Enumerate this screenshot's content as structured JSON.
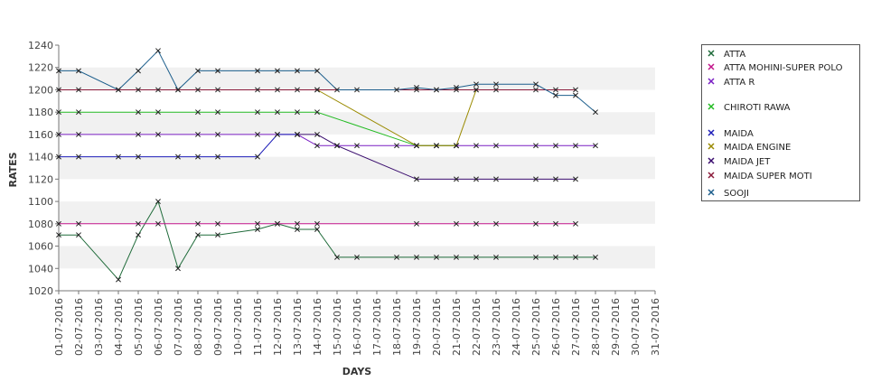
{
  "chart_data": {
    "type": "line",
    "xlabel": "DAYS",
    "ylabel": "RATES",
    "ylim": [
      1020,
      1240
    ],
    "y_ticks": [
      1020,
      1040,
      1060,
      1080,
      1100,
      1120,
      1140,
      1160,
      1180,
      1200,
      1220,
      1240
    ],
    "categories": [
      "01-07-2016",
      "02-07-2016",
      "03-07-2016",
      "04-07-2016",
      "05-07-2016",
      "06-07-2016",
      "07-07-2016",
      "08-07-2016",
      "09-07-2016",
      "10-07-2016",
      "11-07-2016",
      "12-07-2016",
      "13-07-2016",
      "14-07-2016",
      "15-07-2016",
      "16-07-2016",
      "17-07-2016",
      "18-07-2016",
      "19-07-2016",
      "20-07-2016",
      "21-07-2016",
      "22-07-2016",
      "23-07-2016",
      "24-07-2016",
      "25-07-2016",
      "26-07-2016",
      "27-07-2016",
      "28-07-2016",
      "29-07-2016",
      "30-07-2016",
      "31-07-2016"
    ],
    "grid": "horizontal bands",
    "legend_position": "right",
    "series": [
      {
        "name": "ATTA",
        "color": "#1f6b3a",
        "points": [
          [
            1,
            1070
          ],
          [
            2,
            1070
          ],
          [
            4,
            1030
          ],
          [
            5,
            1070
          ],
          [
            6,
            1100
          ],
          [
            7,
            1040
          ],
          [
            8,
            1070
          ],
          [
            9,
            1070
          ],
          [
            11,
            1075
          ],
          [
            12,
            1080
          ],
          [
            13,
            1075
          ],
          [
            14,
            1075
          ],
          [
            15,
            1050
          ],
          [
            16,
            1050
          ],
          [
            18,
            1050
          ],
          [
            19,
            1050
          ],
          [
            20,
            1050
          ],
          [
            21,
            1050
          ],
          [
            22,
            1050
          ],
          [
            23,
            1050
          ],
          [
            25,
            1050
          ],
          [
            26,
            1050
          ],
          [
            27,
            1050
          ],
          [
            28,
            1050
          ]
        ]
      },
      {
        "name": "ATTA MOHINI-SUPER POLO",
        "color": "#c2148a",
        "points": [
          [
            1,
            1080
          ],
          [
            2,
            1080
          ],
          [
            5,
            1080
          ],
          [
            6,
            1080
          ],
          [
            8,
            1080
          ],
          [
            9,
            1080
          ],
          [
            11,
            1080
          ],
          [
            12,
            1080
          ],
          [
            13,
            1080
          ],
          [
            14,
            1080
          ],
          [
            19,
            1080
          ],
          [
            21,
            1080
          ],
          [
            22,
            1080
          ],
          [
            23,
            1080
          ],
          [
            25,
            1080
          ],
          [
            26,
            1080
          ],
          [
            27,
            1080
          ]
        ]
      },
      {
        "name": "ATTA R",
        "color": "#7a1fc4",
        "points": [
          [
            1,
            1160
          ],
          [
            2,
            1160
          ],
          [
            5,
            1160
          ],
          [
            6,
            1160
          ],
          [
            8,
            1160
          ],
          [
            9,
            1160
          ],
          [
            11,
            1160
          ],
          [
            12,
            1160
          ],
          [
            13,
            1160
          ],
          [
            14,
            1150
          ],
          [
            15,
            1150
          ],
          [
            16,
            1150
          ],
          [
            18,
            1150
          ],
          [
            19,
            1150
          ],
          [
            20,
            1150
          ],
          [
            21,
            1150
          ],
          [
            22,
            1150
          ],
          [
            23,
            1150
          ],
          [
            25,
            1150
          ],
          [
            26,
            1150
          ],
          [
            27,
            1150
          ],
          [
            28,
            1150
          ]
        ]
      },
      {
        "name": "CHIROTI RAWA",
        "color": "#22bb22",
        "points": [
          [
            1,
            1180
          ],
          [
            2,
            1180
          ],
          [
            5,
            1180
          ],
          [
            6,
            1180
          ],
          [
            8,
            1180
          ],
          [
            9,
            1180
          ],
          [
            11,
            1180
          ],
          [
            12,
            1180
          ],
          [
            13,
            1180
          ],
          [
            14,
            1180
          ],
          [
            19,
            1150
          ],
          [
            20,
            1150
          ],
          [
            21,
            1150
          ]
        ]
      },
      {
        "name": "MAIDA",
        "color": "#1d1db8",
        "points": [
          [
            1,
            1140
          ],
          [
            2,
            1140
          ],
          [
            4,
            1140
          ],
          [
            5,
            1140
          ],
          [
            7,
            1140
          ],
          [
            8,
            1140
          ],
          [
            9,
            1140
          ],
          [
            11,
            1140
          ],
          [
            12,
            1160
          ],
          [
            13,
            1160
          ]
        ]
      },
      {
        "name": "MAIDA ENGINE",
        "color": "#9a8a00",
        "points": [
          [
            14,
            1200
          ],
          [
            19,
            1150
          ],
          [
            20,
            1150
          ],
          [
            21,
            1150
          ],
          [
            22,
            1200
          ]
        ]
      },
      {
        "name": "MAIDA JET",
        "color": "#3a0d6e",
        "points": [
          [
            13,
            1160
          ],
          [
            14,
            1160
          ],
          [
            15,
            1150
          ],
          [
            19,
            1120
          ],
          [
            21,
            1120
          ],
          [
            22,
            1120
          ],
          [
            23,
            1120
          ],
          [
            25,
            1120
          ],
          [
            26,
            1120
          ],
          [
            27,
            1120
          ]
        ]
      },
      {
        "name": "MAIDA SUPER MOTI",
        "color": "#8b1a3a",
        "points": [
          [
            1,
            1200
          ],
          [
            2,
            1200
          ],
          [
            4,
            1200
          ],
          [
            5,
            1200
          ],
          [
            6,
            1200
          ],
          [
            7,
            1200
          ],
          [
            8,
            1200
          ],
          [
            9,
            1200
          ],
          [
            11,
            1200
          ],
          [
            12,
            1200
          ],
          [
            13,
            1200
          ],
          [
            14,
            1200
          ],
          [
            19,
            1200
          ],
          [
            20,
            1200
          ],
          [
            21,
            1200
          ],
          [
            22,
            1200
          ],
          [
            23,
            1200
          ],
          [
            25,
            1200
          ],
          [
            26,
            1200
          ],
          [
            27,
            1200
          ]
        ]
      },
      {
        "name": "SOOJI",
        "color": "#1c5e8c",
        "points": [
          [
            1,
            1217
          ],
          [
            2,
            1217
          ],
          [
            4,
            1200
          ],
          [
            5,
            1217
          ],
          [
            6,
            1235
          ],
          [
            7,
            1200
          ],
          [
            8,
            1217
          ],
          [
            9,
            1217
          ],
          [
            11,
            1217
          ],
          [
            12,
            1217
          ],
          [
            13,
            1217
          ],
          [
            14,
            1217
          ],
          [
            15,
            1200
          ],
          [
            16,
            1200
          ],
          [
            18,
            1200
          ],
          [
            19,
            1202
          ],
          [
            20,
            1200
          ],
          [
            21,
            1202
          ],
          [
            22,
            1205
          ],
          [
            23,
            1205
          ],
          [
            25,
            1205
          ],
          [
            26,
            1195
          ],
          [
            27,
            1195
          ],
          [
            28,
            1180
          ]
        ]
      }
    ]
  }
}
